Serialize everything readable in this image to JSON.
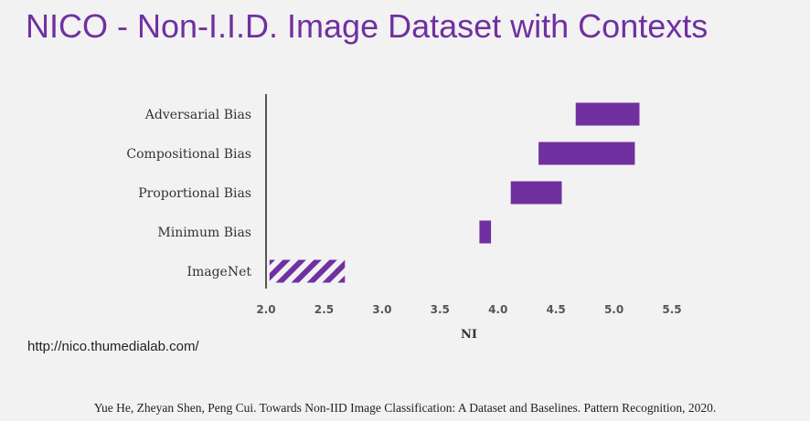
{
  "slide": {
    "title": "NICO - Non-I.I.D. Image Dataset with Contexts",
    "url": "http://nico.thumedialab.com/",
    "citation": "Yue He, Zheyan Shen, Peng Cui. Towards Non-IID Image Classification: A Dataset and Baselines. Pattern Recognition, 2020."
  },
  "colors": {
    "accent": "#7030a0",
    "bar": "#7030a0",
    "axis": "#222222"
  },
  "chart_data": {
    "type": "bar",
    "orientation": "horizontal-range",
    "title": "",
    "xlabel": "NI",
    "ylabel": "",
    "xlim": [
      2.0,
      5.5
    ],
    "xticks": [
      2.0,
      2.5,
      3.0,
      3.5,
      4.0,
      4.5,
      5.0,
      5.5
    ],
    "xtick_labels": [
      "2.0",
      "2.5",
      "3.0",
      "3.5",
      "4.0",
      "4.5",
      "5.0",
      "5.5"
    ],
    "grid": false,
    "categories": [
      "Adversarial Bias",
      "Compositional Bias",
      "Proportional Bias",
      "Minimum Bias",
      "ImageNet"
    ],
    "ranges": [
      {
        "name": "Adversarial Bias",
        "low": 4.67,
        "high": 5.22,
        "pattern": "solid"
      },
      {
        "name": "Compositional Bias",
        "low": 4.35,
        "high": 5.18,
        "pattern": "solid"
      },
      {
        "name": "Proportional Bias",
        "low": 4.11,
        "high": 4.55,
        "pattern": "solid"
      },
      {
        "name": "Minimum Bias",
        "low": 3.84,
        "high": 3.94,
        "pattern": "solid"
      },
      {
        "name": "ImageNet",
        "low": 2.03,
        "high": 2.68,
        "pattern": "hatched"
      }
    ]
  }
}
